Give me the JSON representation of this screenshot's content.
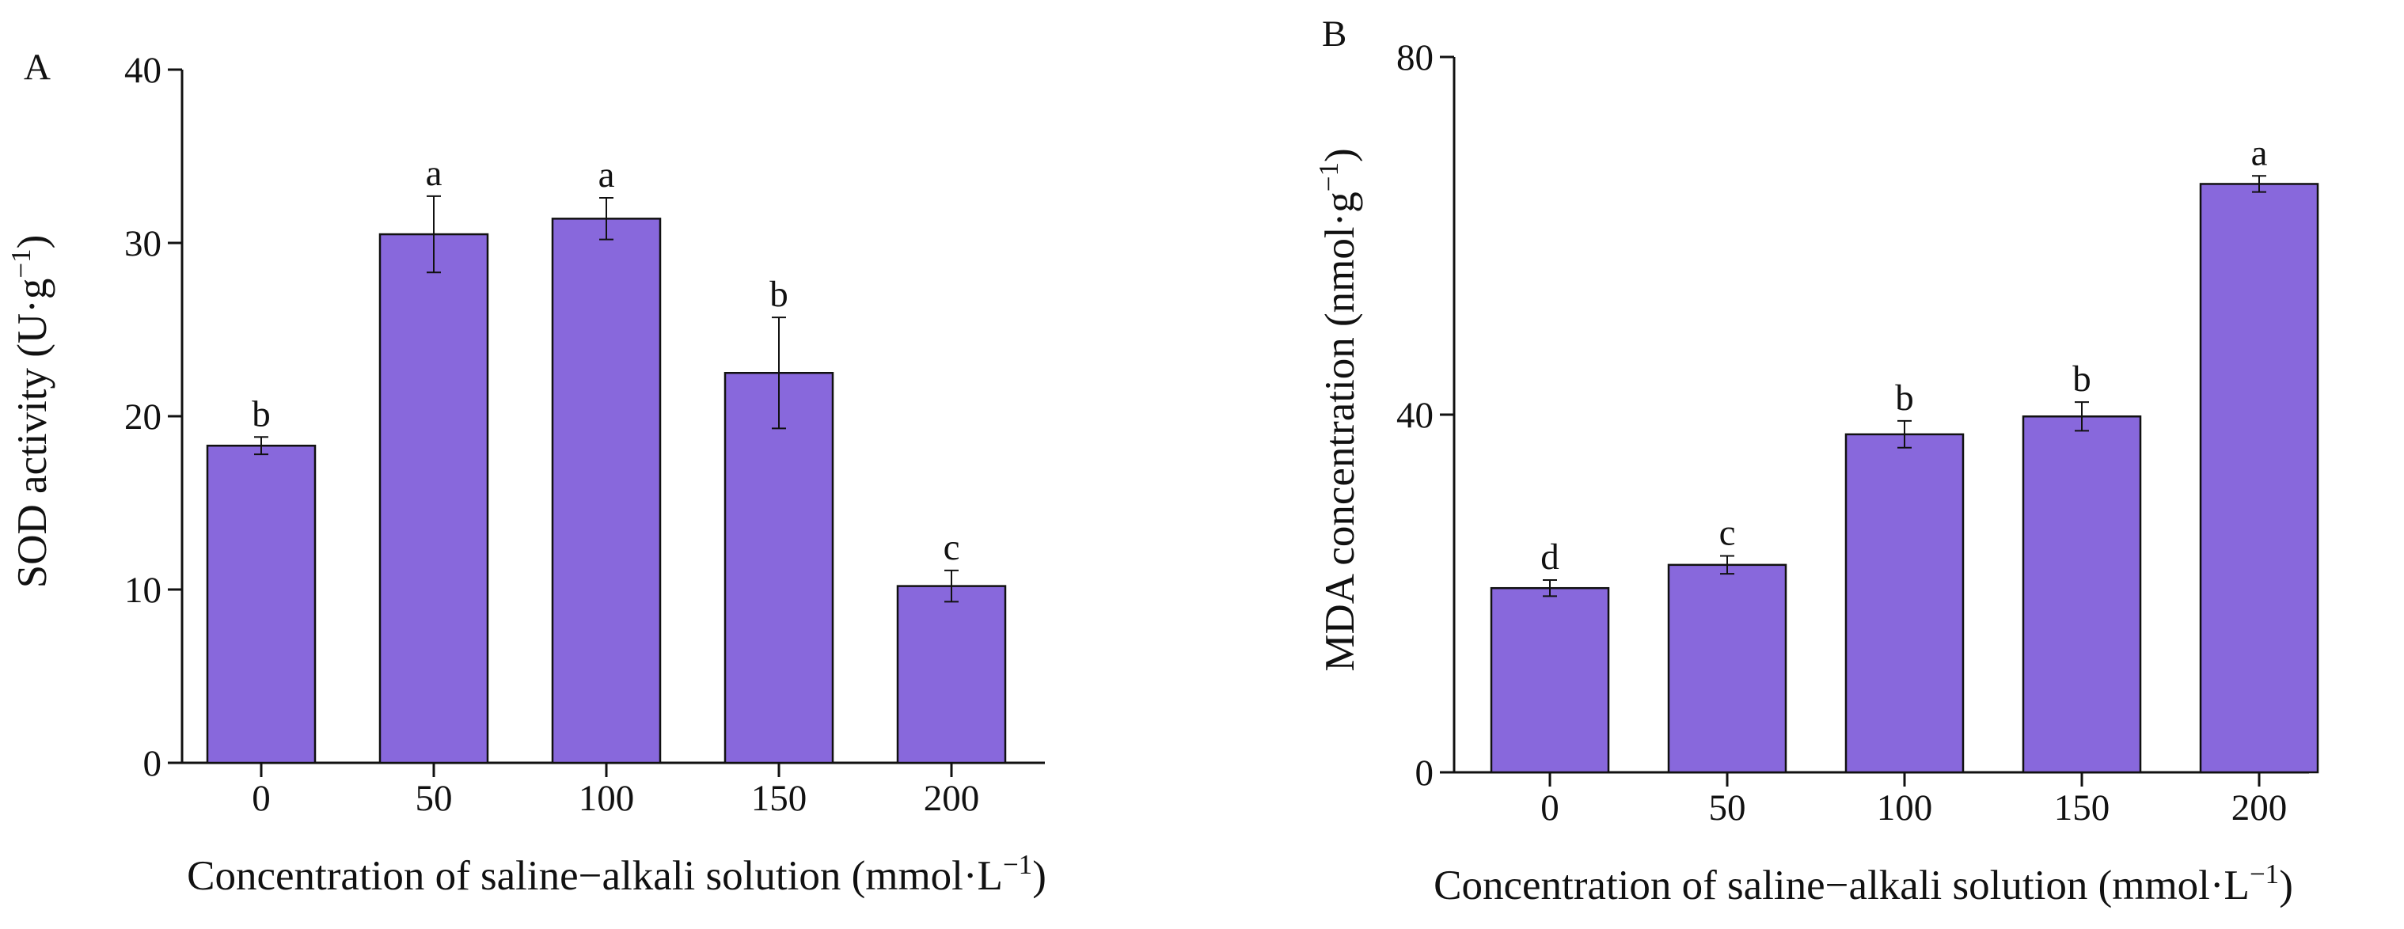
{
  "colors": {
    "bar_fill": "#8868DC",
    "axis": "#111111"
  },
  "chart_data": [
    {
      "type": "bar",
      "panel_label": "A",
      "categories": [
        "0",
        "50",
        "100",
        "150",
        "200"
      ],
      "values": [
        18.3,
        30.5,
        31.4,
        22.5,
        10.2
      ],
      "errors": [
        0.5,
        2.2,
        1.2,
        3.2,
        0.9
      ],
      "significance": [
        "b",
        "a",
        "a",
        "b",
        "c"
      ],
      "xlabel": "Concentration of saline−alkali solution (mmol·L",
      "xlabel_sup": "−1",
      "xlabel_end": ")",
      "ylabel": "SOD activity (U·g",
      "ylabel_sup": "−1",
      "ylabel_end": ")",
      "ylim": [
        0,
        40
      ],
      "yticks": [
        0,
        10,
        20,
        30,
        40
      ],
      "grid": false
    },
    {
      "type": "bar",
      "panel_label": "B",
      "categories": [
        "0",
        "50",
        "100",
        "150",
        "200"
      ],
      "values": [
        20.6,
        23.2,
        37.8,
        39.8,
        65.8
      ],
      "errors": [
        0.9,
        1.0,
        1.5,
        1.6,
        0.9
      ],
      "significance": [
        "d",
        "c",
        "b",
        "b",
        "a"
      ],
      "xlabel": "Concentration of saline−alkali solution (mmol·L",
      "xlabel_sup": "−1",
      "xlabel_end": ")",
      "ylabel": "MDA concentration (nmol·g",
      "ylabel_sup": "−1",
      "ylabel_end": ")",
      "ylim": [
        0,
        80
      ],
      "yticks": [
        0,
        40,
        80
      ],
      "grid": false
    }
  ]
}
